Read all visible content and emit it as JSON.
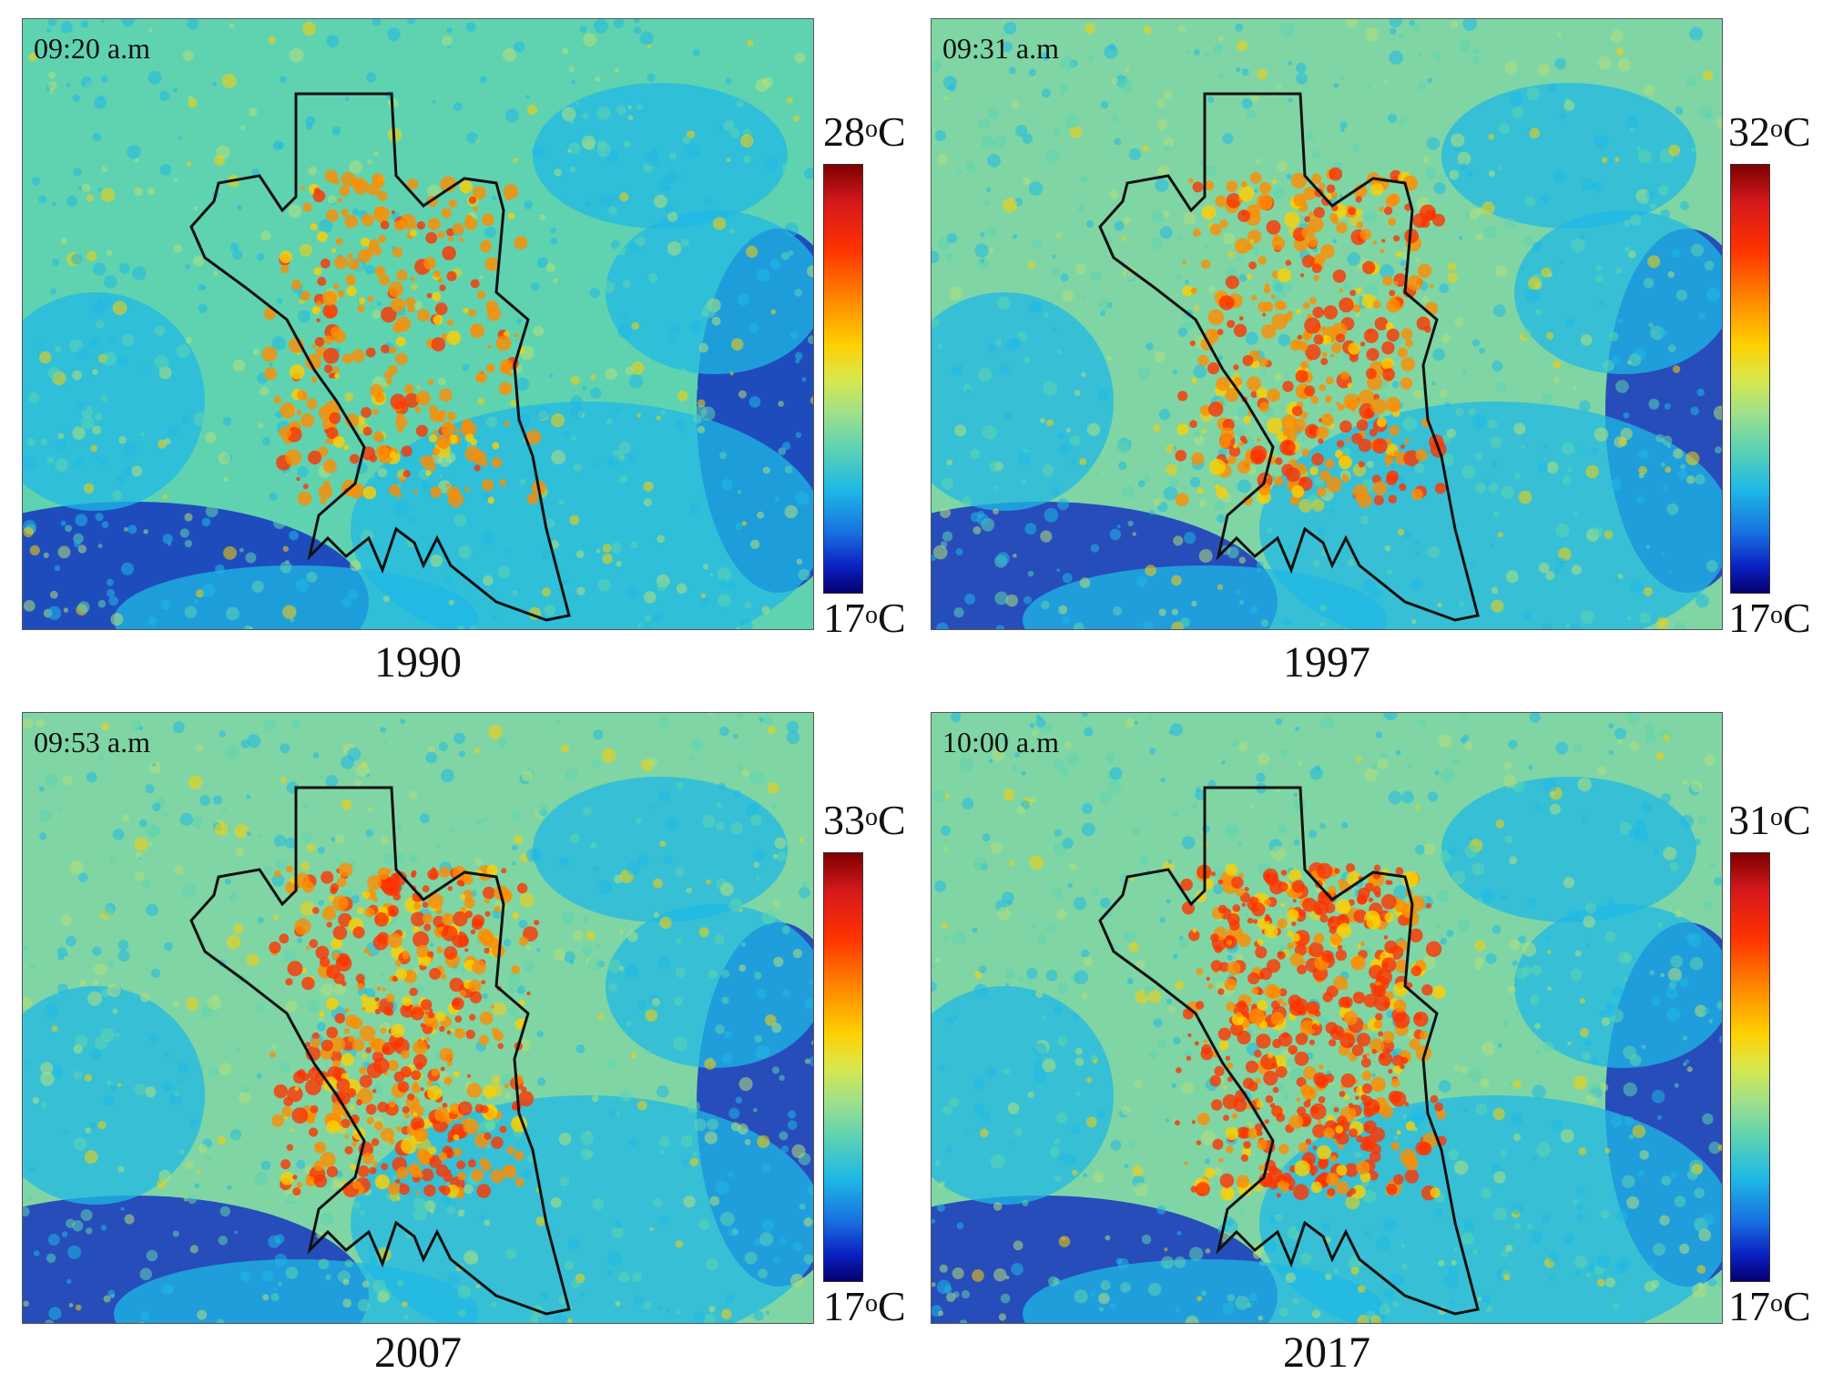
{
  "panels": [
    {
      "year": "1990",
      "time": "09:20 a.m",
      "max": "28",
      "min": "17",
      "unit": "C",
      "deg": "o",
      "heat": 0.35
    },
    {
      "year": "1997",
      "time": "09:31 a.m",
      "max": "32",
      "min": "17",
      "unit": "C",
      "deg": "o",
      "heat": 0.6
    },
    {
      "year": "2007",
      "time": "09:53 a.m",
      "max": "33",
      "min": "17",
      "unit": "C",
      "deg": "o",
      "heat": 0.8
    },
    {
      "year": "2017",
      "time": "10:00 a.m",
      "max": "31",
      "min": "17",
      "unit": "C",
      "deg": "o",
      "heat": 0.95
    }
  ],
  "colors": {
    "cold": "#0a1fc2",
    "cool": "#1fb8e6",
    "mild": "#5fd3b0",
    "warm": "#ffd000",
    "hot": "#ff3300",
    "boundary": "#111111"
  }
}
